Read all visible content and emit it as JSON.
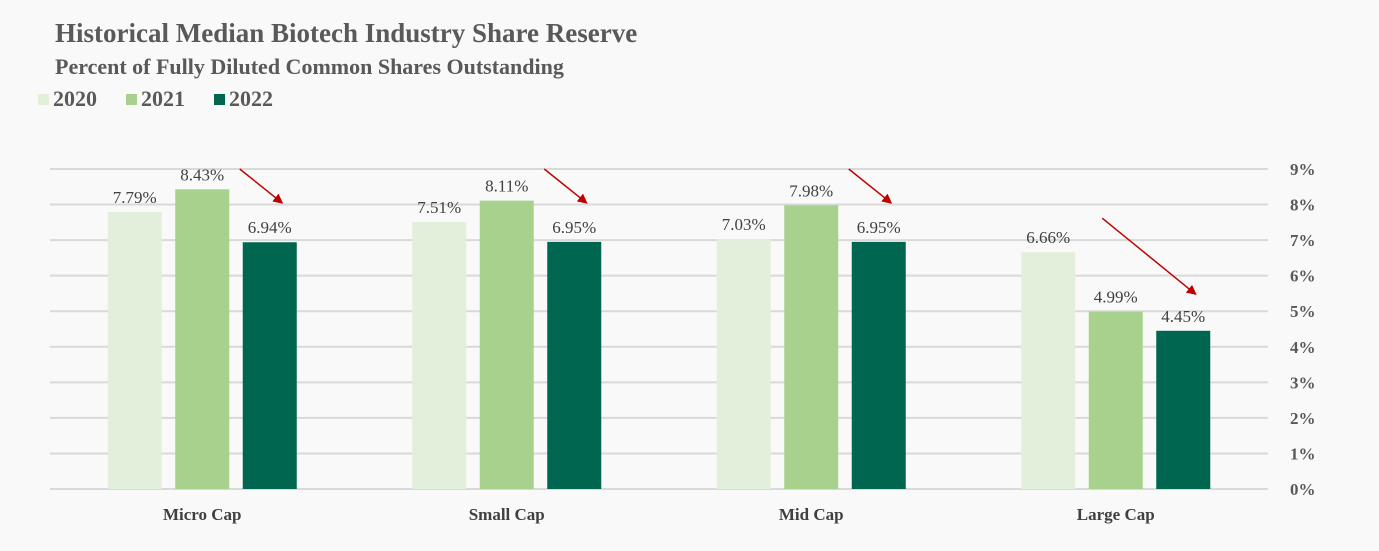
{
  "chart_data": {
    "type": "bar",
    "title": "Historical Median Biotech Industry Share Reserve",
    "subtitle": "Percent of Fully Diluted Common Shares Outstanding",
    "xlabel": "",
    "ylabel": "",
    "categories": [
      "Micro Cap",
      "Small Cap",
      "Mid Cap",
      "Large Cap"
    ],
    "series": [
      {
        "name": "2020",
        "color": "#e2efda",
        "values": [
          7.79,
          7.51,
          7.03,
          6.66
        ],
        "labels": [
          "7.79%",
          "7.51%",
          "7.03%",
          "6.66%"
        ]
      },
      {
        "name": "2021",
        "color": "#a9d18e",
        "values": [
          8.43,
          8.11,
          7.98,
          4.99
        ],
        "labels": [
          "8.43%",
          "8.11%",
          "7.98%",
          "4.99%"
        ]
      },
      {
        "name": "2022",
        "color": "#00664f",
        "values": [
          6.94,
          6.95,
          6.95,
          4.45
        ],
        "labels": [
          "6.94%",
          "6.95%",
          "6.95%",
          "4.45%"
        ]
      }
    ],
    "ylim": [
      0,
      9
    ],
    "yticks": [
      0,
      1,
      2,
      3,
      4,
      5,
      6,
      7,
      8,
      9
    ],
    "ytick_labels": [
      "0%",
      "1%",
      "2%",
      "3%",
      "4%",
      "5%",
      "6%",
      "7%",
      "8%",
      "9%"
    ],
    "y_axis_side": "right",
    "grid": true,
    "legend": {
      "placement": "top-left",
      "entries": [
        "2020",
        "2021",
        "2022"
      ]
    },
    "annotations": [
      {
        "type": "arrow",
        "color": "#c00000",
        "category": "Micro Cap",
        "meaning": "decline from 2021 to 2022"
      },
      {
        "type": "arrow",
        "color": "#c00000",
        "category": "Small Cap",
        "meaning": "decline from 2021 to 2022"
      },
      {
        "type": "arrow",
        "color": "#c00000",
        "category": "Mid Cap",
        "meaning": "decline from 2021 to 2022"
      },
      {
        "type": "arrow",
        "color": "#c00000",
        "category": "Large Cap",
        "meaning": "decline from 2020 to 2022"
      }
    ]
  }
}
